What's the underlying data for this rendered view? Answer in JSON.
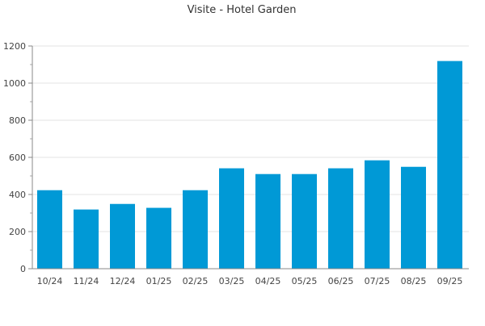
{
  "chart_data": {
    "type": "bar",
    "title": "Visite - Hotel Garden",
    "xlabel": "",
    "ylabel": "",
    "categories": [
      "10/24",
      "11/24",
      "12/24",
      "01/25",
      "02/25",
      "03/25",
      "04/25",
      "05/25",
      "06/25",
      "07/25",
      "08/25",
      "09/25"
    ],
    "values": [
      423,
      319,
      349,
      328,
      423,
      541,
      510,
      510,
      541,
      584,
      549,
      1119
    ],
    "ylim": [
      0,
      1200
    ],
    "yticks": [
      0,
      200,
      400,
      600,
      800,
      1000,
      1200
    ],
    "grid": true,
    "bar_color": "#0099d6"
  }
}
